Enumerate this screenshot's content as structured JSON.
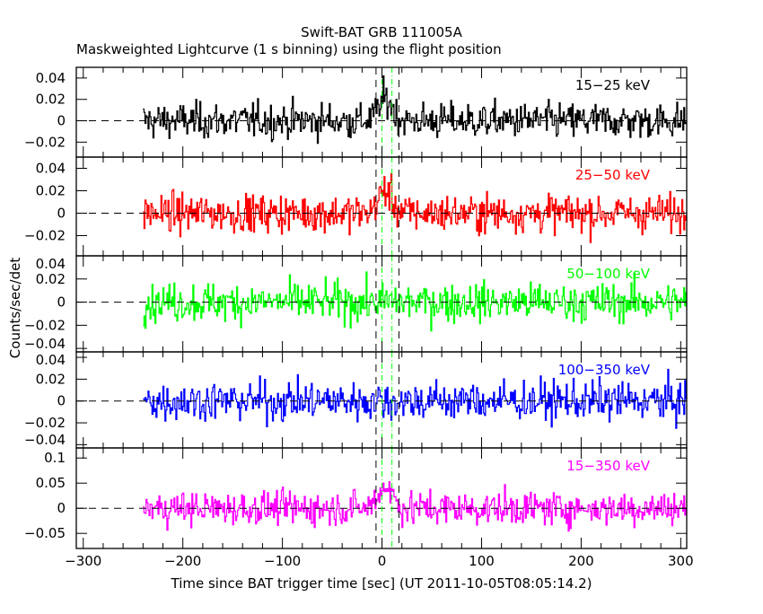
{
  "chart_data": {
    "type": "line",
    "title": "Swift-BAT GRB 111005A",
    "subtitle": "Maskweighted Lightcurve (1 s binning) using the flight position",
    "xlabel": "Time since BAT trigger time [sec] (UT 2011-10-05T08:05:14.2)",
    "ylabel": "Counts/sec/det",
    "xlim": [
      -307,
      306
    ],
    "xticks": [
      -300,
      -200,
      -100,
      0,
      100,
      200,
      300
    ],
    "xtick_labels": [
      "−300",
      "−200",
      "−100",
      "0",
      "100",
      "200",
      "300"
    ],
    "data_x_range": [
      -240,
      310
    ],
    "bin_seconds": 1,
    "vlines_black_dashed": [
      -6,
      17
    ],
    "vlines_green_dashdot": [
      0,
      10
    ],
    "panels": [
      {
        "name": "15-25 keV",
        "label": "15−25 keV",
        "color": "#000000",
        "ylim": [
          -0.034,
          0.05
        ],
        "yticks": [
          -0.02,
          0,
          0.02,
          0.04
        ],
        "ytick_labels": [
          "−0.02",
          "0",
          "0.02",
          "0.04"
        ],
        "noise_sigma": 0.011,
        "peak": 0.02
      },
      {
        "name": "25-50 keV",
        "label": "25−50 keV",
        "color": "#ff0000",
        "ylim": [
          -0.038,
          0.05
        ],
        "yticks": [
          -0.02,
          0,
          0.02,
          0.04
        ],
        "ytick_labels": [
          "−0.02",
          "0",
          "0.02",
          "0.04"
        ],
        "noise_sigma": 0.011,
        "peak": 0.02
      },
      {
        "name": "50-100 keV",
        "label": "50−100 keV",
        "color": "#00ff00",
        "ylim": [
          -0.043,
          0.04
        ],
        "yticks": [
          -0.04,
          -0.02,
          0,
          0.02,
          0.04
        ],
        "ytick_labels": [
          "−0.04",
          "−0.02",
          "0",
          "0.02",
          "0.04"
        ],
        "noise_sigma": 0.011,
        "peak": 0.0
      },
      {
        "name": "100-350 keV",
        "label": "100−350 keV",
        "color": "#0000ff",
        "ylim": [
          -0.043,
          0.045
        ],
        "yticks": [
          -0.04,
          -0.02,
          0,
          0.02,
          0.04
        ],
        "ytick_labels": [
          "−0.04",
          "−0.02",
          "0",
          "0.02",
          "0.04"
        ],
        "noise_sigma": 0.012,
        "peak": 0.0
      },
      {
        "name": "15-350 keV",
        "label": "15−350 keV",
        "color": "#ff00ff",
        "ylim": [
          -0.08,
          0.12
        ],
        "yticks": [
          -0.05,
          0,
          0.05,
          0.1
        ],
        "ytick_labels": [
          "−0.05",
          "0",
          "0.05",
          "0.1"
        ],
        "noise_sigma": 0.022,
        "peak": 0.045
      }
    ]
  }
}
